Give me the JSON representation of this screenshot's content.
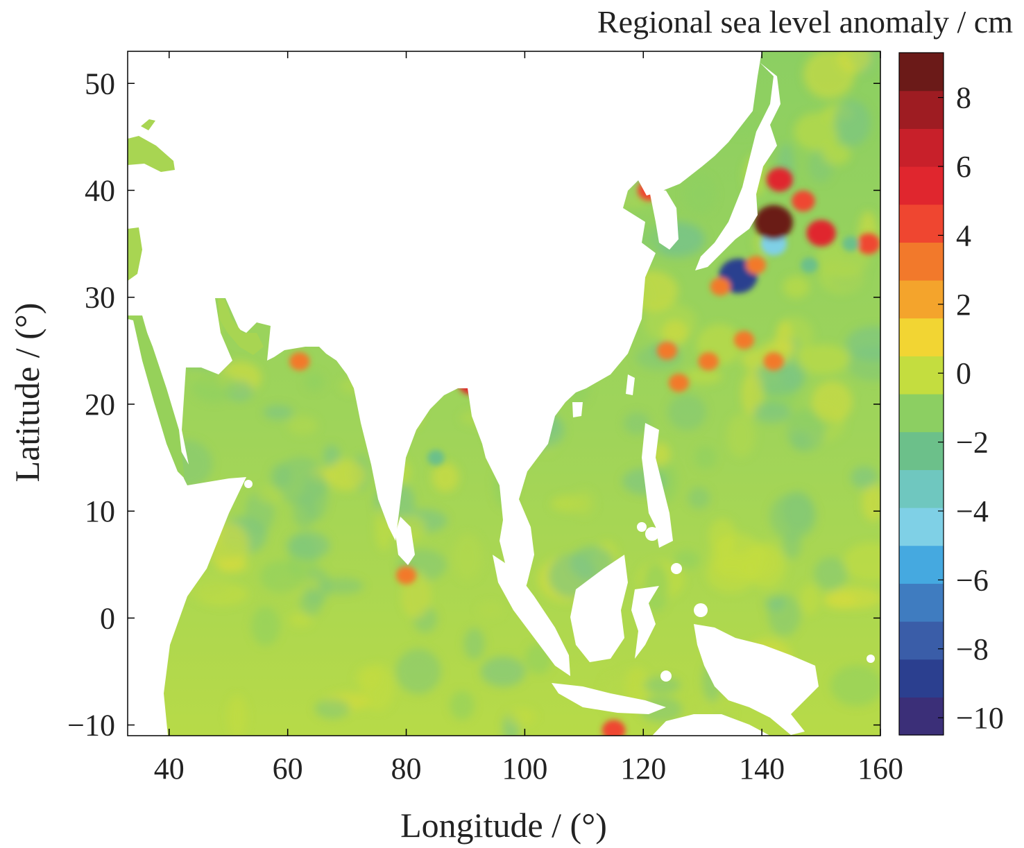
{
  "chart_data": {
    "type": "heatmap",
    "title": "",
    "xlabel": "Longitude / (°)",
    "ylabel": "Latitude / (°)",
    "colorbar_label": "Regional sea level anomaly / cm",
    "xlim": [
      33,
      160
    ],
    "ylim": [
      -11,
      53
    ],
    "xticks": [
      40,
      60,
      80,
      100,
      120,
      140,
      160
    ],
    "yticks": [
      -10,
      0,
      10,
      20,
      30,
      40,
      50
    ],
    "colorbar_range": [
      -10.5,
      9.3
    ],
    "colorbar_ticks": [
      -10,
      -8,
      -6,
      -4,
      -2,
      0,
      2,
      4,
      6,
      8
    ],
    "colormap": [
      "#3b2f78",
      "#2b3f8f",
      "#3a5da8",
      "#3f7cc0",
      "#45a9e0",
      "#7fd0e6",
      "#6fc7bf",
      "#6cc08a",
      "#8ccf62",
      "#c4dd3f",
      "#f2d533",
      "#f4a42c",
      "#f2792b",
      "#ef4630",
      "#e0262e",
      "#c8202a",
      "#9e1c22",
      "#6b1a18"
    ],
    "anomalies": [
      {
        "lon": 136,
        "lat": 32,
        "value": -9
      },
      {
        "lon": 142,
        "lat": 35,
        "value": -5
      },
      {
        "lon": 142,
        "lat": 37,
        "value": 9
      },
      {
        "lon": 150,
        "lat": 36,
        "value": 6
      },
      {
        "lon": 143,
        "lat": 41,
        "value": 5
      },
      {
        "lon": 147,
        "lat": 39,
        "value": 4
      },
      {
        "lon": 158,
        "lat": 35,
        "value": 4
      },
      {
        "lon": 139,
        "lat": 33,
        "value": 3
      },
      {
        "lon": 133,
        "lat": 31,
        "value": 3
      },
      {
        "lon": 124,
        "lat": 25,
        "value": 3
      },
      {
        "lon": 126,
        "lat": 22,
        "value": 3
      },
      {
        "lon": 131,
        "lat": 24,
        "value": 3
      },
      {
        "lon": 142,
        "lat": 24,
        "value": 3
      },
      {
        "lon": 137,
        "lat": 26,
        "value": 3
      },
      {
        "lon": 121,
        "lat": 40,
        "value": 4
      },
      {
        "lon": 62,
        "lat": 24,
        "value": 3
      },
      {
        "lon": 91,
        "lat": 22,
        "value": 5
      },
      {
        "lon": 80,
        "lat": 4,
        "value": 3
      },
      {
        "lon": 115,
        "lat": -10.5,
        "value": 4
      },
      {
        "lon": 85,
        "lat": 15,
        "value": -2
      },
      {
        "lon": 148,
        "lat": 33,
        "value": -2
      },
      {
        "lon": 155,
        "lat": 35,
        "value": -2
      }
    ]
  }
}
